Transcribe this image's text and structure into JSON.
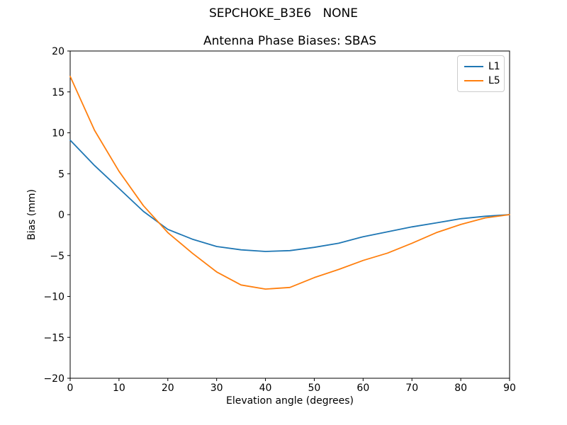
{
  "figure": {
    "suptitle": "SEPCHOKE_B3E6   NONE"
  },
  "chart_data": {
    "type": "line",
    "title": "Antenna Phase Biases: SBAS",
    "xlabel": "Elevation angle (degrees)",
    "ylabel": "Bias (mm)",
    "xlim": [
      0,
      90
    ],
    "ylim": [
      -20,
      20
    ],
    "xticks": [
      0,
      10,
      20,
      30,
      40,
      50,
      60,
      70,
      80,
      90
    ],
    "yticks": [
      -20,
      -15,
      -10,
      -5,
      0,
      5,
      10,
      15,
      20
    ],
    "grid": false,
    "legend_position": "upper right",
    "x": [
      0,
      5,
      10,
      15,
      20,
      25,
      30,
      35,
      40,
      45,
      50,
      55,
      60,
      65,
      70,
      75,
      80,
      85,
      90
    ],
    "series": [
      {
        "name": "L1",
        "color": "#1f77b4",
        "values": [
          9.1,
          6.0,
          3.2,
          0.4,
          -1.8,
          -3.0,
          -3.9,
          -4.3,
          -4.5,
          -4.4,
          -4.0,
          -3.5,
          -2.7,
          -2.1,
          -1.5,
          -1.0,
          -0.5,
          -0.2,
          0.0
        ]
      },
      {
        "name": "L5",
        "color": "#ff7f0e",
        "values": [
          16.9,
          10.3,
          5.3,
          1.1,
          -2.2,
          -4.7,
          -7.0,
          -8.6,
          -9.1,
          -8.9,
          -7.7,
          -6.7,
          -5.6,
          -4.7,
          -3.5,
          -2.2,
          -1.2,
          -0.4,
          0.0
        ]
      }
    ],
    "frame_color": "#000000",
    "tick_color": "#000000"
  }
}
